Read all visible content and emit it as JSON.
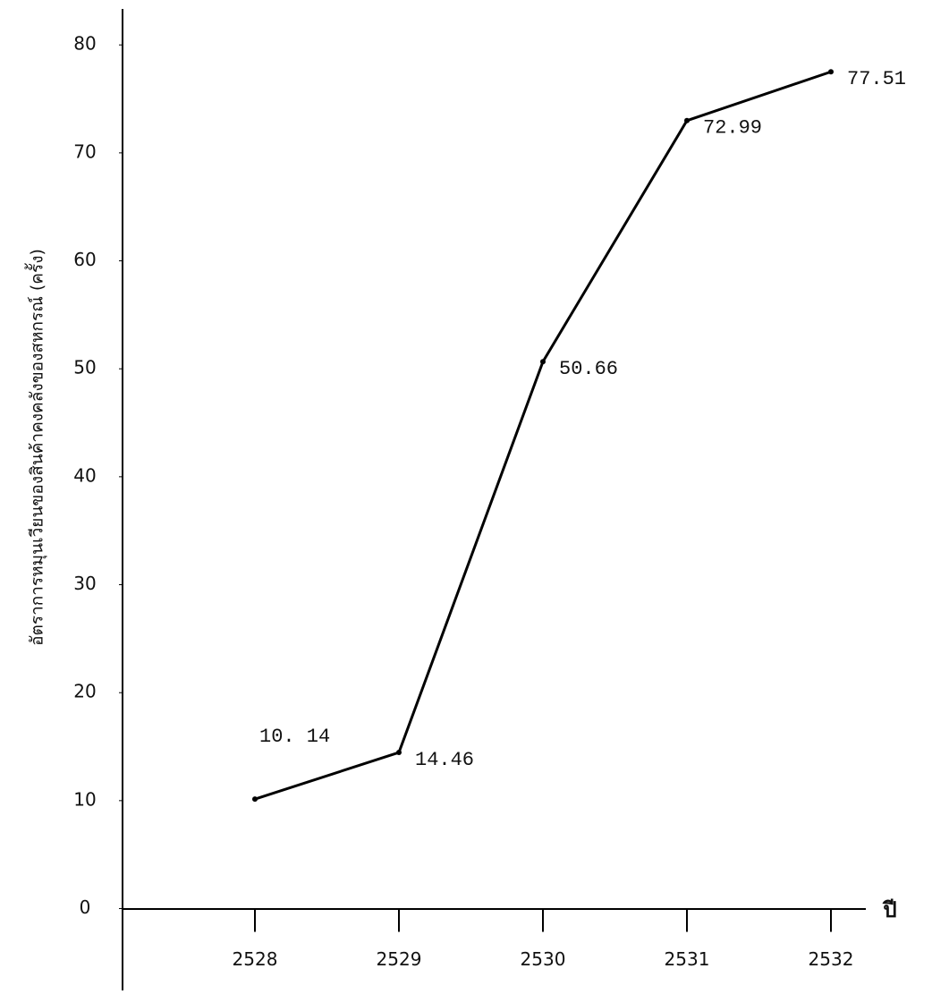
{
  "chart_data": {
    "type": "line",
    "y_label": "อัตราการหมุนเวียนของสินค้าคงคลังของสหกรณ์ (ครั้ง)",
    "x_label": "ปี",
    "categories": [
      "2528",
      "2529",
      "2530",
      "2531",
      "2532"
    ],
    "values": [
      10.14,
      14.46,
      50.66,
      72.99,
      77.51
    ],
    "value_labels": [
      "10. 14",
      "14.46",
      "50.66",
      "72.99",
      "77.51"
    ],
    "color": "#000000",
    "ylim": [
      -7,
      83
    ],
    "yticks": [
      0,
      10,
      20,
      30,
      40,
      50,
      60,
      70,
      80
    ],
    "grid": false
  }
}
